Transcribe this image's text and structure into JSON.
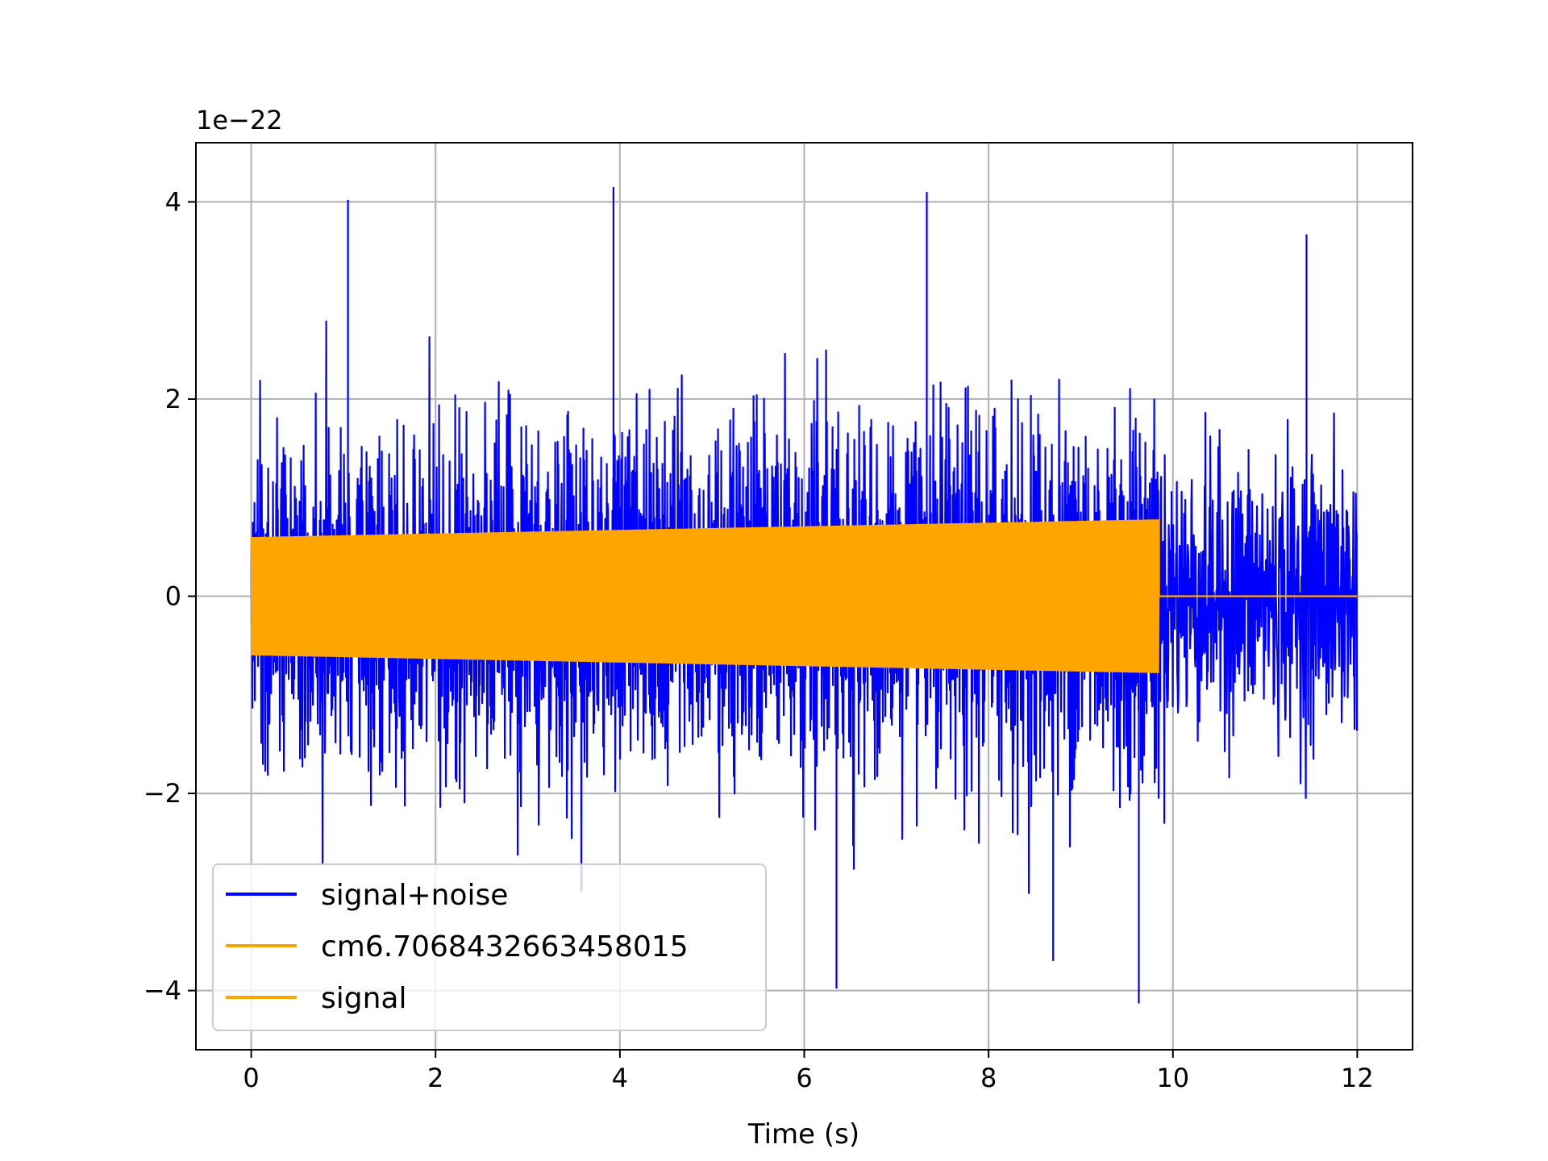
{
  "chart_data": {
    "type": "line",
    "title": "",
    "xlabel": "Time (s)",
    "ylabel": "",
    "y_offset_label": "1e−22",
    "xlim": [
      -0.6,
      12.6
    ],
    "ylim": [
      -4.6,
      4.6
    ],
    "grid": true,
    "legend_placement": "lower-left",
    "x_ticks": [
      0,
      2,
      4,
      6,
      8,
      10,
      12
    ],
    "x_tick_labels": [
      "0",
      "2",
      "4",
      "6",
      "8",
      "10",
      "12"
    ],
    "y_ticks": [
      -4,
      -2,
      0,
      2,
      4
    ],
    "y_tick_labels": [
      "−4",
      "−2",
      "0",
      "2",
      "4"
    ],
    "series": [
      {
        "name": "signal+noise",
        "color": "#0000ff",
        "style": "random noise envelope",
        "x_range": [
          0,
          12
        ],
        "typical_amplitude": 2.0,
        "peaks": [
          {
            "x": 1.05,
            "y": 4.02
          },
          {
            "x": 3.93,
            "y": 4.15
          },
          {
            "x": 7.33,
            "y": 4.1
          },
          {
            "x": 11.45,
            "y": 3.67
          },
          {
            "x": 6.35,
            "y": -3.98
          },
          {
            "x": 9.63,
            "y": -4.13
          },
          {
            "x": 8.7,
            "y": -3.7
          }
        ]
      },
      {
        "name": "cm6.7068432663458015",
        "color": "#ffa500",
        "style": "oscillation envelope",
        "x_range": [
          0,
          9.85
        ],
        "amplitude_start": 0.6,
        "amplitude_end": 0.78
      },
      {
        "name": "signal",
        "color": "#ffa500",
        "style": "oscillation envelope",
        "x_range": [
          0,
          9.85
        ],
        "amplitude_start": 0.6,
        "amplitude_end": 0.78,
        "zero_after": [
          9.85,
          12
        ]
      }
    ],
    "colors": {
      "noise": "#0000ff",
      "signal": "#ffa500",
      "grid": "#b0b0b0",
      "axes": "#000000"
    }
  }
}
